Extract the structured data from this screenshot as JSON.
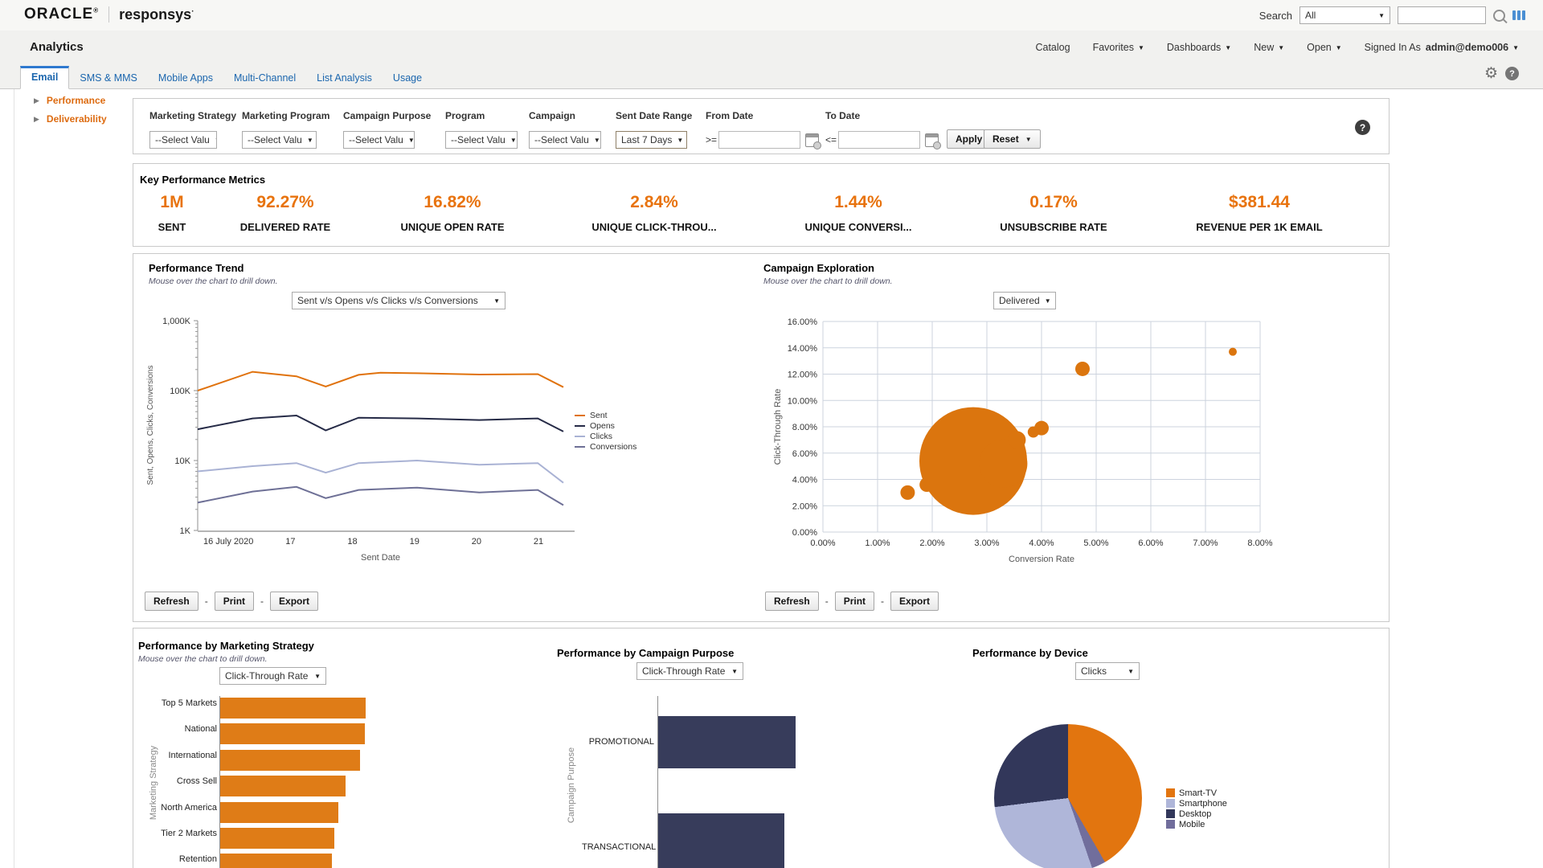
{
  "topbar": {
    "brand": {
      "primary": "ORACLE",
      "primary_mark": "®",
      "secondary": "responsys",
      "secondary_mark": "·"
    },
    "search_label": "Search",
    "search_scope": "All",
    "search_value": ""
  },
  "header": {
    "title": "Analytics",
    "menu": [
      {
        "label": "Catalog",
        "caret": false
      },
      {
        "label": "Favorites",
        "caret": true
      },
      {
        "label": "Dashboards",
        "caret": true
      },
      {
        "label": "New",
        "caret": true
      },
      {
        "label": "Open",
        "caret": true
      }
    ],
    "signed_in_label": "Signed In As",
    "user": "admin@demo006"
  },
  "tabs": [
    {
      "label": "Email",
      "active": true
    },
    {
      "label": "SMS & MMS",
      "active": false
    },
    {
      "label": "Mobile Apps",
      "active": false
    },
    {
      "label": "Multi-Channel",
      "active": false
    },
    {
      "label": "List Analysis",
      "active": false
    },
    {
      "label": "Usage",
      "active": false
    }
  ],
  "sidebar": [
    {
      "label": "Performance"
    },
    {
      "label": "Deliverability"
    }
  ],
  "filters": {
    "fields": [
      {
        "label": "Marketing Strategy",
        "value": "--Select Valu"
      },
      {
        "label": "Marketing Program",
        "value": "--Select Valu"
      },
      {
        "label": "Campaign Purpose",
        "value": "--Select Valu"
      },
      {
        "label": "Program",
        "value": "--Select Valu"
      },
      {
        "label": "Campaign",
        "value": "--Select Valu"
      },
      {
        "label": "Sent Date Range",
        "value": "Last 7 Days"
      },
      {
        "label": "From Date",
        "operator": ">=",
        "value": ""
      },
      {
        "label": "To Date",
        "operator": "<=",
        "value": ""
      }
    ],
    "apply_label": "Apply",
    "reset_label": "Reset"
  },
  "kpi": {
    "title": "Key Performance Metrics",
    "metrics": [
      {
        "value": "1M",
        "label": "SENT"
      },
      {
        "value": "92.27%",
        "label": "DELIVERED RATE"
      },
      {
        "value": "16.82%",
        "label": "UNIQUE OPEN RATE"
      },
      {
        "value": "2.84%",
        "label": "UNIQUE CLICK-THROU..."
      },
      {
        "value": "1.44%",
        "label": "UNIQUE CONVERSI..."
      },
      {
        "value": "0.17%",
        "label": "UNSUBSCRIBE RATE"
      },
      {
        "value": "$381.44",
        "label": "REVENUE PER 1K EMAIL"
      }
    ]
  },
  "chart_buttons": {
    "refresh": "Refresh",
    "print": "Print",
    "export": "Export",
    "separator": "-"
  },
  "trend": {
    "type": "line",
    "title": "Performance Trend",
    "subtitle": "Mouse over the chart to drill down.",
    "metric_selector": "Sent v/s Opens v/s Clicks v/s Conversions",
    "y_axis_label": "Sent, Opens, Clicks, Conversions",
    "x_axis_label": "Sent Date",
    "y_scale": "log",
    "y_ticks": [
      {
        "label": "1,000K",
        "value": 1000
      },
      {
        "label": "100K",
        "value": 100
      },
      {
        "label": "10K",
        "value": 10
      },
      {
        "label": "1K",
        "value": 1
      }
    ],
    "x_ticks": [
      "16 July 2020",
      "17",
      "18",
      "19",
      "20",
      "21"
    ],
    "series": [
      {
        "name": "Sent",
        "color": "#e0720d",
        "points": [
          [
            0,
            100
          ],
          [
            0.15,
            186
          ],
          [
            0.27,
            160
          ],
          [
            0.35,
            114
          ],
          [
            0.44,
            168
          ],
          [
            0.5,
            180
          ],
          [
            0.6,
            177
          ],
          [
            0.77,
            170
          ],
          [
            0.93,
            172
          ],
          [
            1,
            112
          ]
        ]
      },
      {
        "name": "Opens",
        "color": "#262b47",
        "points": [
          [
            0,
            28
          ],
          [
            0.15,
            40
          ],
          [
            0.27,
            44
          ],
          [
            0.35,
            27
          ],
          [
            0.44,
            41
          ],
          [
            0.6,
            40
          ],
          [
            0.77,
            38
          ],
          [
            0.93,
            40
          ],
          [
            1,
            26
          ]
        ]
      },
      {
        "name": "Clicks",
        "color": "#a9b2d4",
        "points": [
          [
            0,
            7
          ],
          [
            0.15,
            8.3
          ],
          [
            0.27,
            9.2
          ],
          [
            0.35,
            6.7
          ],
          [
            0.44,
            9.2
          ],
          [
            0.6,
            10
          ],
          [
            0.77,
            8.7
          ],
          [
            0.93,
            9.2
          ],
          [
            1,
            4.8
          ]
        ]
      },
      {
        "name": "Conversions",
        "color": "#6e7096",
        "points": [
          [
            0,
            2.5
          ],
          [
            0.15,
            3.6
          ],
          [
            0.27,
            4.2
          ],
          [
            0.35,
            2.9
          ],
          [
            0.44,
            3.8
          ],
          [
            0.6,
            4.1
          ],
          [
            0.77,
            3.5
          ],
          [
            0.93,
            3.8
          ],
          [
            1,
            2.3
          ]
        ]
      }
    ]
  },
  "exploration": {
    "type": "bubble",
    "title": "Campaign Exploration",
    "subtitle": "Mouse over the chart to drill down.",
    "metric_selector": "Delivered",
    "x_axis_label": "Conversion Rate",
    "y_axis_label": "Click-Through Rate",
    "x_ticks": [
      "0.00%",
      "1.00%",
      "2.00%",
      "3.00%",
      "4.00%",
      "5.00%",
      "6.00%",
      "7.00%",
      "8.00%"
    ],
    "y_ticks": [
      "0.00%",
      "2.00%",
      "4.00%",
      "6.00%",
      "8.00%",
      "10.00%",
      "12.00%",
      "14.00%",
      "16.00%"
    ],
    "color": "#db750e",
    "bubbles": [
      [
        1.55,
        3.0,
        9
      ],
      [
        1.9,
        3.6,
        9
      ],
      [
        2.1,
        4.1,
        9
      ],
      [
        2.75,
        5.4,
        67
      ],
      [
        3.3,
        5.2,
        30
      ],
      [
        3.55,
        7.0,
        11
      ],
      [
        3.85,
        7.6,
        7
      ],
      [
        4.0,
        7.9,
        9
      ],
      [
        4.75,
        12.4,
        9
      ],
      [
        7.5,
        13.7,
        5
      ]
    ]
  },
  "strategy": {
    "type": "bar",
    "title": "Performance by Marketing Strategy",
    "subtitle": "Mouse over the chart to drill down.",
    "metric_selector": "Click-Through Rate",
    "axis_label": "Marketing Strategy",
    "categories": [
      "Top 5 Markets",
      "National",
      "International",
      "Cross Sell",
      "North America",
      "Tier 2 Markets",
      "Retention"
    ],
    "values": [
      100,
      99.5,
      96,
      86,
      81,
      78.5,
      77
    ],
    "color": "#df7c17"
  },
  "purpose": {
    "type": "bar",
    "title": "Performance by Campaign Purpose",
    "metric_selector": "Click-Through Rate",
    "axis_label": "Campaign Purpose",
    "categories": [
      "PROMOTIONAL",
      "TRANSACTIONAL"
    ],
    "values": [
      100,
      91.8
    ],
    "color": "#373c5b"
  },
  "device": {
    "type": "pie",
    "title": "Performance by Device",
    "metric_selector": "Clicks",
    "slices": [
      {
        "label": "Smart-TV",
        "color": "#e2750f",
        "start_deg": 0,
        "end_deg": 150
      },
      {
        "label": "Mobile",
        "color": "#716e9c",
        "start_deg": 150,
        "end_deg": 161
      },
      {
        "label": "Smartphone",
        "color": "#afb6d9",
        "start_deg": 161,
        "end_deg": 263
      },
      {
        "label": "Desktop",
        "color": "#32375a",
        "start_deg": 263,
        "end_deg": 360
      }
    ],
    "legend": [
      "Smart-TV",
      "Smartphone",
      "Desktop",
      "Mobile"
    ]
  }
}
